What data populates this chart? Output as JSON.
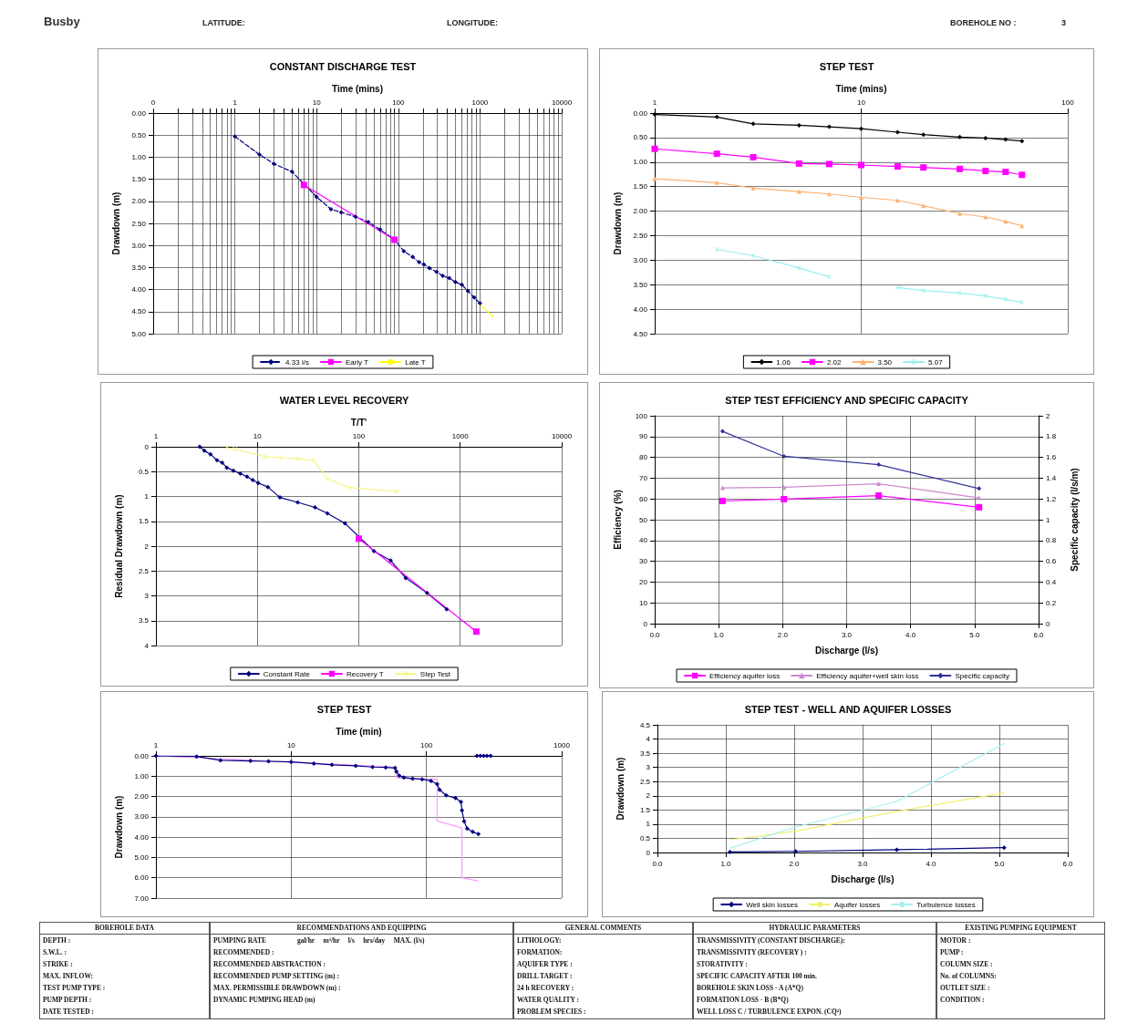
{
  "chart_data": [
    {
      "type": "other",
      "title": "Busby",
      "annotations": [
        "LATITUDE:",
        "LONGITUDE:",
        "BOREHOLE NO :",
        "3"
      ]
    },
    {
      "type": "line",
      "title": "CONSTANT DISCHARGE TEST",
      "xlabel": "Time (mins)",
      "ylabel": "Drawdown (m)",
      "log": "x",
      "grid": true,
      "legend": "bottom",
      "xlim": [
        0.1,
        10000
      ],
      "xticks": [
        {
          "value": 0.1,
          "label": "0"
        },
        {
          "value": 0.2,
          "label": null
        },
        {
          "value": 0.3,
          "label": null
        },
        {
          "value": 0.4,
          "label": null
        },
        {
          "value": 0.5,
          "label": null
        },
        {
          "value": 0.6,
          "label": null
        },
        {
          "value": 0.7,
          "label": null
        },
        {
          "value": 0.8,
          "label": null
        },
        {
          "value": 0.9,
          "label": null
        },
        1,
        {
          "value": 2,
          "label": null
        },
        {
          "value": 3,
          "label": null
        },
        {
          "value": 4,
          "label": null
        },
        {
          "value": 5,
          "label": null
        },
        {
          "value": 6,
          "label": null
        },
        {
          "value": 7,
          "label": null
        },
        {
          "value": 8,
          "label": null
        },
        {
          "value": 9,
          "label": null
        },
        10,
        {
          "value": 20,
          "label": null
        },
        {
          "value": 30,
          "label": null
        },
        {
          "value": 40,
          "label": null
        },
        {
          "value": 50,
          "label": null
        },
        {
          "value": 60,
          "label": null
        },
        {
          "value": 70,
          "label": null
        },
        {
          "value": 80,
          "label": null
        },
        {
          "value": 90,
          "label": null
        },
        100,
        {
          "value": 200,
          "label": null
        },
        {
          "value": 300,
          "label": null
        },
        {
          "value": 400,
          "label": null
        },
        {
          "value": 500,
          "label": null
        },
        {
          "value": 600,
          "label": null
        },
        {
          "value": 700,
          "label": null
        },
        {
          "value": 800,
          "label": null
        },
        {
          "value": 900,
          "label": null
        },
        1000,
        {
          "value": 2000,
          "label": null
        },
        {
          "value": 3000,
          "label": null
        },
        {
          "value": 4000,
          "label": null
        },
        {
          "value": 5000,
          "label": null
        },
        {
          "value": 6000,
          "label": null
        },
        {
          "value": 7000,
          "label": null
        },
        {
          "value": 8000,
          "label": null
        },
        {
          "value": 9000,
          "label": null
        },
        10000
      ],
      "ylim": [
        5,
        0
      ],
      "yticks": [
        {
          "value": 0,
          "label": "0.00"
        },
        {
          "value": 0.5,
          "label": "0.50"
        },
        {
          "value": 1,
          "label": "1.00"
        },
        {
          "value": 1.5,
          "label": "1.50"
        },
        {
          "value": 2,
          "label": "2.00"
        },
        {
          "value": 2.5,
          "label": "2.50"
        },
        {
          "value": 3,
          "label": "3.00"
        },
        {
          "value": 3.5,
          "label": "3.50"
        },
        {
          "value": 4,
          "label": "4.00"
        },
        {
          "value": 4.5,
          "label": "4.50"
        },
        {
          "value": 5,
          "label": "5.00"
        }
      ],
      "series": [
        {
          "name": "4.33 l/s",
          "color": "#000080",
          "marker": "diamond",
          "line_style": "dashed",
          "x": [
            1,
            2,
            3,
            5,
            10,
            15,
            20,
            30,
            43,
            60,
            90,
            117,
            150,
            180,
            205,
            240,
            295,
            350,
            420,
            500,
            600,
            710,
            850,
            1000
          ],
          "values": [
            0.53,
            0.94,
            1.15,
            1.33,
            1.9,
            2.18,
            2.25,
            2.35,
            2.47,
            2.64,
            2.87,
            3.13,
            3.26,
            3.38,
            3.43,
            3.51,
            3.6,
            3.69,
            3.74,
            3.83,
            3.89,
            4.03,
            4.18,
            4.31
          ]
        },
        {
          "name": "Early T",
          "color": "#ff00ff",
          "marker": "square",
          "x": [
            7,
            90
          ],
          "values": [
            1.63,
            2.87
          ]
        },
        {
          "name": "Late T",
          "color": "#ffff00",
          "marker": "none",
          "x": [
            1000,
            1450
          ],
          "values": [
            4.33,
            4.62
          ]
        }
      ]
    },
    {
      "type": "line",
      "title": "STEP TEST",
      "xlabel": "Time (mins)",
      "ylabel": "Drawdown (m)",
      "log": "x",
      "grid": true,
      "legend": "bottom",
      "xlim": [
        1,
        100
      ],
      "xticks": [
        1,
        10,
        100
      ],
      "ylim": [
        4.5,
        0
      ],
      "yticks": [
        {
          "value": 0,
          "label": "0.00"
        },
        {
          "value": 0.5,
          "label": "0.50"
        },
        {
          "value": 1,
          "label": "1.00"
        },
        {
          "value": 1.5,
          "label": "1.50"
        },
        {
          "value": 2,
          "label": "2.00"
        },
        {
          "value": 2.5,
          "label": "2.50"
        },
        {
          "value": 3,
          "label": "3.00"
        },
        {
          "value": 3.5,
          "label": "3.50"
        },
        {
          "value": 4,
          "label": "4.00"
        },
        {
          "value": 4.5,
          "label": "4.50"
        }
      ],
      "x": [
        1,
        2,
        3,
        5,
        7,
        10,
        15,
        20,
        30,
        40,
        50,
        60
      ],
      "series": [
        {
          "name": "1.06",
          "color": "#000000",
          "marker": "diamond",
          "values": [
            0.03,
            0.08,
            0.22,
            0.25,
            0.28,
            0.32,
            0.39,
            0.44,
            0.49,
            0.51,
            0.54,
            0.57
          ]
        },
        {
          "name": "2.02",
          "color": "#ff00ff",
          "marker": "square",
          "values": [
            0.73,
            0.83,
            0.9,
            1.03,
            1.04,
            1.06,
            1.09,
            1.11,
            1.14,
            1.18,
            1.2,
            1.26
          ]
        },
        {
          "name": "3.50",
          "color": "#ffb070",
          "marker": "triangle",
          "values": [
            1.34,
            1.42,
            1.53,
            1.6,
            1.65,
            1.72,
            1.78,
            1.89,
            2.05,
            2.12,
            2.21,
            2.3
          ]
        },
        {
          "name": "5.07",
          "color": "#99eeee",
          "marker": "cross",
          "values": [
            null,
            2.78,
            2.91,
            3.16,
            3.34,
            null,
            3.56,
            3.62,
            3.67,
            3.73,
            3.8,
            3.86
          ]
        }
      ]
    },
    {
      "type": "line",
      "title": "WATER LEVEL RECOVERY",
      "xlabel": "T/T'",
      "ylabel": "Residual Drawdown (m)",
      "log": "x",
      "grid": true,
      "legend": "bottom",
      "xlim": [
        1,
        10000
      ],
      "xticks": [
        1,
        10,
        100,
        1000,
        10000
      ],
      "ylim": [
        4,
        0
      ],
      "yticks": [
        0,
        0.5,
        1,
        1.5,
        2,
        2.5,
        3,
        3.5,
        4
      ],
      "series": [
        {
          "name": "Constant Rate",
          "color": "#000080",
          "marker": "diamond",
          "x": [
            2.7,
            3,
            3.45,
            4,
            4.5,
            5,
            5.8,
            6.8,
            7.9,
            9,
            10.2,
            12.7,
            16.7,
            25,
            37,
            49,
            73,
            141,
            206,
            290,
            470,
            735
          ],
          "values": [
            0,
            0.08,
            0.15,
            0.27,
            0.32,
            0.42,
            0.48,
            0.54,
            0.6,
            0.67,
            0.73,
            0.81,
            1.02,
            1.12,
            1.22,
            1.34,
            1.54,
            2.1,
            2.29,
            2.64,
            2.94,
            3.27
          ]
        },
        {
          "name": "Recovery T",
          "color": "#ff00ff",
          "marker": "square",
          "x": [
            100,
            1440
          ],
          "values": [
            1.85,
            3.72
          ]
        },
        {
          "name": "Step Test",
          "color": "#f5f58a",
          "marker": "cross",
          "x": [
            5,
            6,
            12,
            17,
            25,
            36,
            49,
            80,
            240
          ],
          "values": [
            0.02,
            0.05,
            0.2,
            0.22,
            0.24,
            0.28,
            0.64,
            0.82,
            0.9
          ]
        }
      ]
    },
    {
      "type": "line",
      "title": "STEP TEST EFFICIENCY AND SPECIFIC CAPACITY",
      "xlabel": "Discharge (l/s)",
      "ylabel": "Efficiency (%)",
      "y2label": "Specific capacity (l/s/m)",
      "grid": true,
      "legend": "bottom",
      "xlim": [
        0,
        6
      ],
      "xticks": [
        {
          "value": 0,
          "label": "0.0"
        },
        {
          "value": 1,
          "label": "1.0"
        },
        {
          "value": 2,
          "label": "2.0"
        },
        {
          "value": 3,
          "label": "3.0"
        },
        {
          "value": 4,
          "label": "4.0"
        },
        {
          "value": 5,
          "label": "5.0"
        },
        {
          "value": 6,
          "label": "6.0"
        }
      ],
      "ylim": [
        0,
        100
      ],
      "yticks": [
        0,
        10,
        20,
        30,
        40,
        50,
        60,
        70,
        80,
        90,
        100
      ],
      "y2lim": [
        0,
        2
      ],
      "y2ticks": [
        0,
        0.2,
        0.4,
        0.6,
        0.8,
        1,
        1.2,
        1.4,
        1.6,
        1.8,
        2
      ],
      "x": [
        1.06,
        2.02,
        3.5,
        5.07
      ],
      "series": [
        {
          "name": "Efficiency aquifer loss",
          "color": "#ff00ff",
          "marker": "square",
          "values": [
            59,
            59.9,
            61.6,
            56
          ]
        },
        {
          "name": "Efficiency aquifer+well skin loss",
          "color": "#cc88cc",
          "marker": "triangle",
          "values": [
            65.3,
            65.6,
            67.3,
            60.5
          ]
        },
        {
          "name": "Specific capacity",
          "color": "#333399",
          "marker": "diamond",
          "axis": "y2",
          "values": [
            1.85,
            1.61,
            1.53,
            1.3
          ]
        }
      ]
    },
    {
      "type": "line",
      "title": "STEP TEST",
      "xlabel": "Time (min)",
      "ylabel": "Drawdown (m)",
      "log": "x",
      "grid": true,
      "legend": false,
      "xlim": [
        1,
        1000
      ],
      "xticks": [
        1,
        10,
        100,
        1000
      ],
      "ylim": [
        7,
        0
      ],
      "yticks": [
        {
          "value": 0,
          "label": "0.00"
        },
        {
          "value": 1,
          "label": "1.00"
        },
        {
          "value": 2,
          "label": "2.00"
        },
        {
          "value": 3,
          "label": "3.00"
        },
        {
          "value": 4,
          "label": "4.00"
        },
        {
          "value": 5,
          "label": "5.00"
        },
        {
          "value": 6,
          "label": "6.00"
        },
        {
          "value": 7,
          "label": "7.00"
        }
      ],
      "series": [
        {
          "color": "#ff99ff",
          "marker": "none",
          "x": [
            1,
            58,
            60,
            120,
            120,
            183,
            183,
            240
          ],
          "values": [
            0,
            0.55,
            1.1,
            1.15,
            3.2,
            3.55,
            6,
            6.15
          ]
        },
        {
          "color": "#000080",
          "marker": "diamond",
          "x": [
            1,
            2,
            3,
            5,
            6.8,
            10,
            14.7,
            20,
            30,
            40,
            50,
            58.6,
            60,
            63,
            68,
            79,
            93,
            108,
            120,
            125,
            140,
            164,
            180,
            183,
            190,
            200,
            220,
            242
          ],
          "values": [
            0,
            0.03,
            0.22,
            0.25,
            0.27,
            0.3,
            0.38,
            0.44,
            0.49,
            0.55,
            0.57,
            0.6,
            0.77,
            0.98,
            1.07,
            1.12,
            1.15,
            1.23,
            1.39,
            1.67,
            1.94,
            2.08,
            2.27,
            2.68,
            3.22,
            3.58,
            3.74,
            3.85
          ]
        },
        {
          "color": "#000080",
          "marker": "diamond",
          "x": [
            236,
            250,
            265,
            280,
            298
          ],
          "values": [
            0,
            0,
            0,
            0,
            0
          ]
        }
      ]
    },
    {
      "type": "line",
      "title": "STEP TEST - WELL AND AQUIFER LOSSES",
      "xlabel": "Discharge (l/s)",
      "ylabel": "Drawdown (m)",
      "grid": true,
      "legend": "bottom",
      "xlim": [
        0,
        6
      ],
      "xticks": [
        {
          "value": 0,
          "label": "0.0"
        },
        {
          "value": 1,
          "label": "1.0"
        },
        {
          "value": 2,
          "label": "2.0"
        },
        {
          "value": 3,
          "label": "3.0"
        },
        {
          "value": 4,
          "label": "4.0"
        },
        {
          "value": 5,
          "label": "5.0"
        },
        {
          "value": 6,
          "label": "6.0"
        }
      ],
      "ylim": [
        0,
        4.5
      ],
      "yticks": [
        0,
        0.5,
        1,
        1.5,
        2,
        2.5,
        3,
        3.5,
        4,
        4.5
      ],
      "x": [
        1.06,
        2.02,
        3.5,
        5.07
      ],
      "series": [
        {
          "name": "Well skin losses",
          "color": "#000080",
          "marker": "diamond",
          "values": [
            0.02,
            0.04,
            0.1,
            0.17
          ]
        },
        {
          "name": "Aquifer losses",
          "color": "#f0f070",
          "marker": "none",
          "values": [
            0.45,
            0.75,
            1.45,
            2.1
          ]
        },
        {
          "name": "Turbulence losses",
          "color": "#aaeeee",
          "marker": "none",
          "values": [
            0.15,
            0.9,
            1.8,
            3.84
          ]
        }
      ]
    },
    {
      "type": "other",
      "title": "BOREHOLE DATA",
      "annotations": [
        "DEPTH :",
        "S.W.L. :",
        "STRIKE :",
        "MAX. INFLOW:",
        "TEST PUMP TYPE :",
        "PUMP DEPTH :",
        "DATE TESTED :"
      ]
    },
    {
      "type": "other",
      "title": "RECOMMENDATIONS AND EQUIPPING",
      "subtitle": "gal/hr     m³/hr     l/s     hrs/day     MAX. (l/s)",
      "annotations": [
        "PUMPING RATE",
        "RECOMMENDED :",
        "RECOMMENDED ABSTRACTION :",
        "RECOMMENDED PUMP SETTING (m) :",
        "MAX. PERMISSIBLE DRAWDOWN (m) :",
        "DYNAMIC PUMPING HEAD (m)"
      ]
    },
    {
      "type": "other",
      "title": "GENERAL COMMENTS",
      "annotations": [
        "LITHOLOGY:",
        "FORMATION:",
        "AQUIFER TYPE :",
        "DRILL TARGET :",
        "24 h RECOVERY :",
        "WATER QUALITY :",
        "PROBLEM SPECIES :"
      ]
    },
    {
      "type": "other",
      "title": "HYDRAULIC PARAMETERS",
      "annotations": [
        "TRANSMISSIVITY (CONSTANT DISCHARGE):",
        "TRANSMISSIVITY (RECOVERY ) :",
        "STORATIVITY :",
        "SPECIFIC CAPACITY AFTER 100 min.",
        "BOREHOLE SKIN LOSS - A (A*Q)",
        "FORMATION LOSS - B (B*Q)",
        "WELL LOSS C / TURBULENCE EXPON. (CQ²)"
      ]
    },
    {
      "type": "other",
      "title": "EXISTING PUMPING EQUIPMENT",
      "annotations": [
        "MOTOR :",
        "PUMP :",
        "COLUMN SIZE :",
        "No. of COLUMNS:",
        "OUTLET SIZE :",
        "CONDITION :"
      ]
    }
  ]
}
